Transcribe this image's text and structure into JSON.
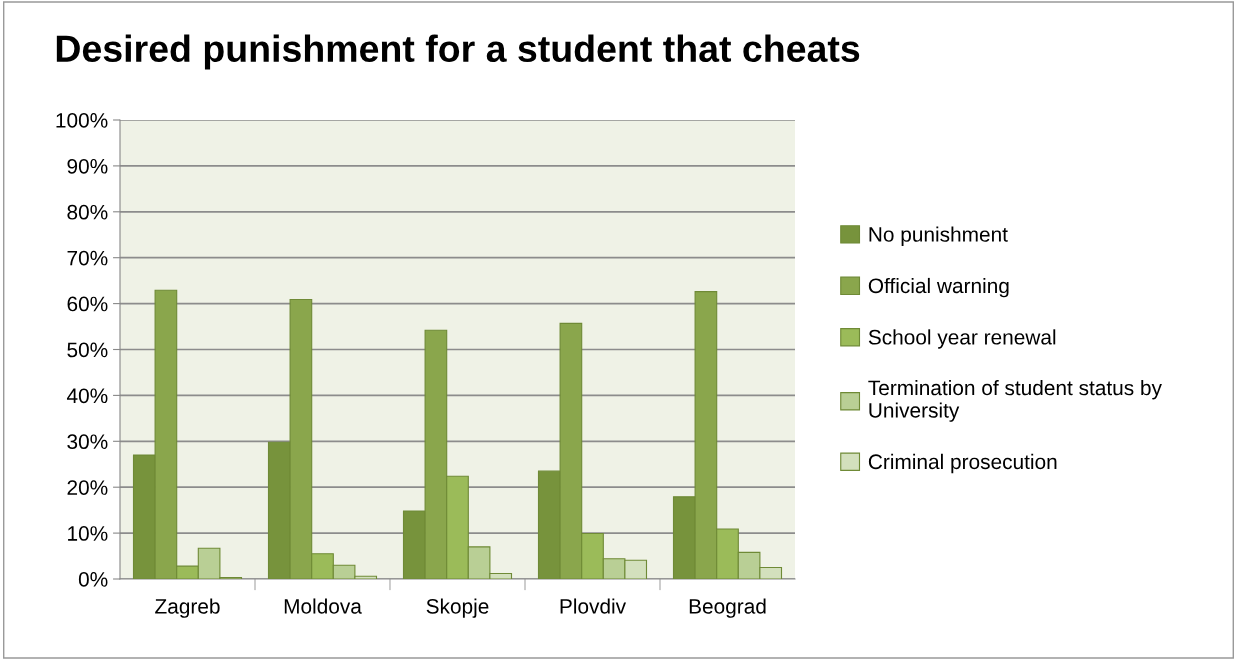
{
  "chart_data": {
    "type": "bar",
    "title": "Desired punishment for a student that cheats",
    "categories": [
      "Zagreb",
      "Moldova",
      "Skopje",
      "Plovdiv",
      "Beograd"
    ],
    "series": [
      {
        "name": "No punishment",
        "color": "#77933c",
        "values": [
          27.0,
          29.8,
          14.8,
          23.5,
          17.9
        ]
      },
      {
        "name": "Official warning",
        "color": "#8aa64c",
        "values": [
          62.9,
          60.9,
          54.2,
          55.7,
          62.6
        ]
      },
      {
        "name": "School year renewal",
        "color": "#9bbb59",
        "values": [
          2.8,
          5.5,
          22.4,
          9.9,
          10.9
        ]
      },
      {
        "name": "Termination of student status by\nUniversity",
        "color": "#b9cf95",
        "values": [
          6.7,
          3.0,
          7.0,
          4.4,
          5.8
        ]
      },
      {
        "name": "Criminal prosecution",
        "color": "#d3e0bd",
        "values": [
          0.3,
          0.6,
          1.2,
          4.1,
          2.5
        ]
      }
    ],
    "ylim": [
      0,
      100
    ],
    "yticks": [
      {
        "value": 0,
        "label": "0%"
      },
      {
        "value": 10,
        "label": "10%"
      },
      {
        "value": 20,
        "label": "20%"
      },
      {
        "value": 30,
        "label": "30%"
      },
      {
        "value": 40,
        "label": "40%"
      },
      {
        "value": 50,
        "label": "50%"
      },
      {
        "value": 60,
        "label": "60%"
      },
      {
        "value": 70,
        "label": "70%"
      },
      {
        "value": 80,
        "label": "80%"
      },
      {
        "value": 90,
        "label": "90%"
      },
      {
        "value": 100,
        "label": "100%"
      }
    ],
    "grid": "y",
    "legend": "right"
  }
}
